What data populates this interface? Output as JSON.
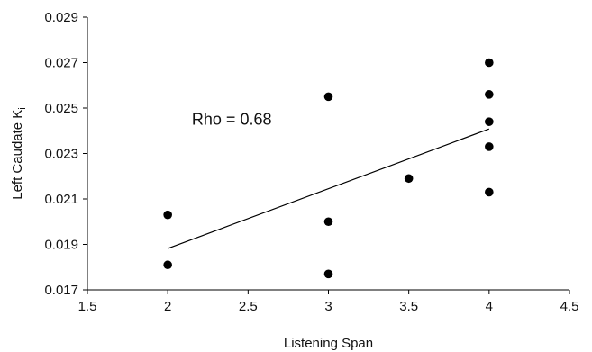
{
  "chart_data": {
    "type": "scatter",
    "title": "",
    "xlabel": "Listening Span",
    "ylabel": "Left Caudate K",
    "ylabel_subscript": "i",
    "xlim": [
      1.5,
      4.5
    ],
    "ylim": [
      0.017,
      0.029
    ],
    "x_ticks": [
      1.5,
      2,
      2.5,
      3,
      3.5,
      4,
      4.5
    ],
    "x_tick_labels": [
      "1.5",
      "2",
      "2.5",
      "3",
      "3.5",
      "4",
      "4.5"
    ],
    "y_ticks": [
      0.017,
      0.019,
      0.021,
      0.023,
      0.025,
      0.027,
      0.029
    ],
    "y_tick_labels": [
      "0.017",
      "0.019",
      "0.021",
      "0.023",
      "0.025",
      "0.027",
      "0.029"
    ],
    "grid": false,
    "legend": "none",
    "series": [
      {
        "x": [
          2,
          2,
          3,
          3,
          3,
          3.5,
          4,
          4,
          4,
          4,
          4
        ],
        "y": [
          0.0203,
          0.0181,
          0.0255,
          0.02,
          0.0177,
          0.0219,
          0.027,
          0.0256,
          0.0244,
          0.0233,
          0.0213
        ]
      }
    ],
    "trendline": {
      "x": [
        2,
        4
      ],
      "y": [
        0.01882,
        0.02408
      ]
    },
    "annotation": "Rho = 0.68",
    "annotation_at": {
      "x": 2.15,
      "y": 0.0245
    },
    "colors": {
      "points": "#000000",
      "axis": "#000000",
      "text": "#111111"
    }
  }
}
